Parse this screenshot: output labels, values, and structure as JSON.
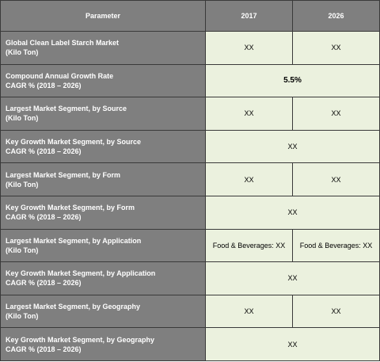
{
  "header": {
    "parameter": "Parameter",
    "year1": "2017",
    "year2": "2026"
  },
  "rows": [
    {
      "line1": "Global Clean Label Starch Market",
      "line2": "(Kilo Ton)",
      "v2017": "XX",
      "v2026": "XX"
    },
    {
      "line1": "Compound Annual Growth Rate",
      "line2": "CAGR % (2018 – 2026)",
      "value": "5.5%"
    },
    {
      "line1": "Largest Market Segment, by Source",
      "line2": "(Kilo Ton)",
      "v2017": "XX",
      "v2026": "XX"
    },
    {
      "line1": "Key Growth Market Segment, by Source",
      "line2": "CAGR % (2018 – 2026)",
      "value": "XX"
    },
    {
      "line1": "Largest Market Segment, by Form",
      "line2": "(Kilo Ton)",
      "v2017": "XX",
      "v2026": "XX"
    },
    {
      "line1": "Key Growth Market Segment, by Form",
      "line2": "CAGR % (2018 – 2026)",
      "value": "XX"
    },
    {
      "line1": "Largest Market Segment, by Application",
      "line2": "(Kilo Ton)",
      "v2017": "Food & Beverages: XX",
      "v2026": "Food & Beverages: XX"
    },
    {
      "line1": "Key Growth Market Segment, by Application",
      "line2": "CAGR % (2018 – 2026)",
      "value": "XX"
    },
    {
      "line1": "Largest Market Segment, by Geography",
      "line2": "(Kilo Ton)",
      "v2017": "XX",
      "v2026": "XX"
    },
    {
      "line1": "Key Growth Market Segment, by Geography",
      "line2": "CAGR % (2018 – 2026)",
      "value": "XX"
    }
  ],
  "colors": {
    "header_bg": "#7f7f7f",
    "value_bg": "#ebf1de",
    "border": "#3a3a3a"
  }
}
